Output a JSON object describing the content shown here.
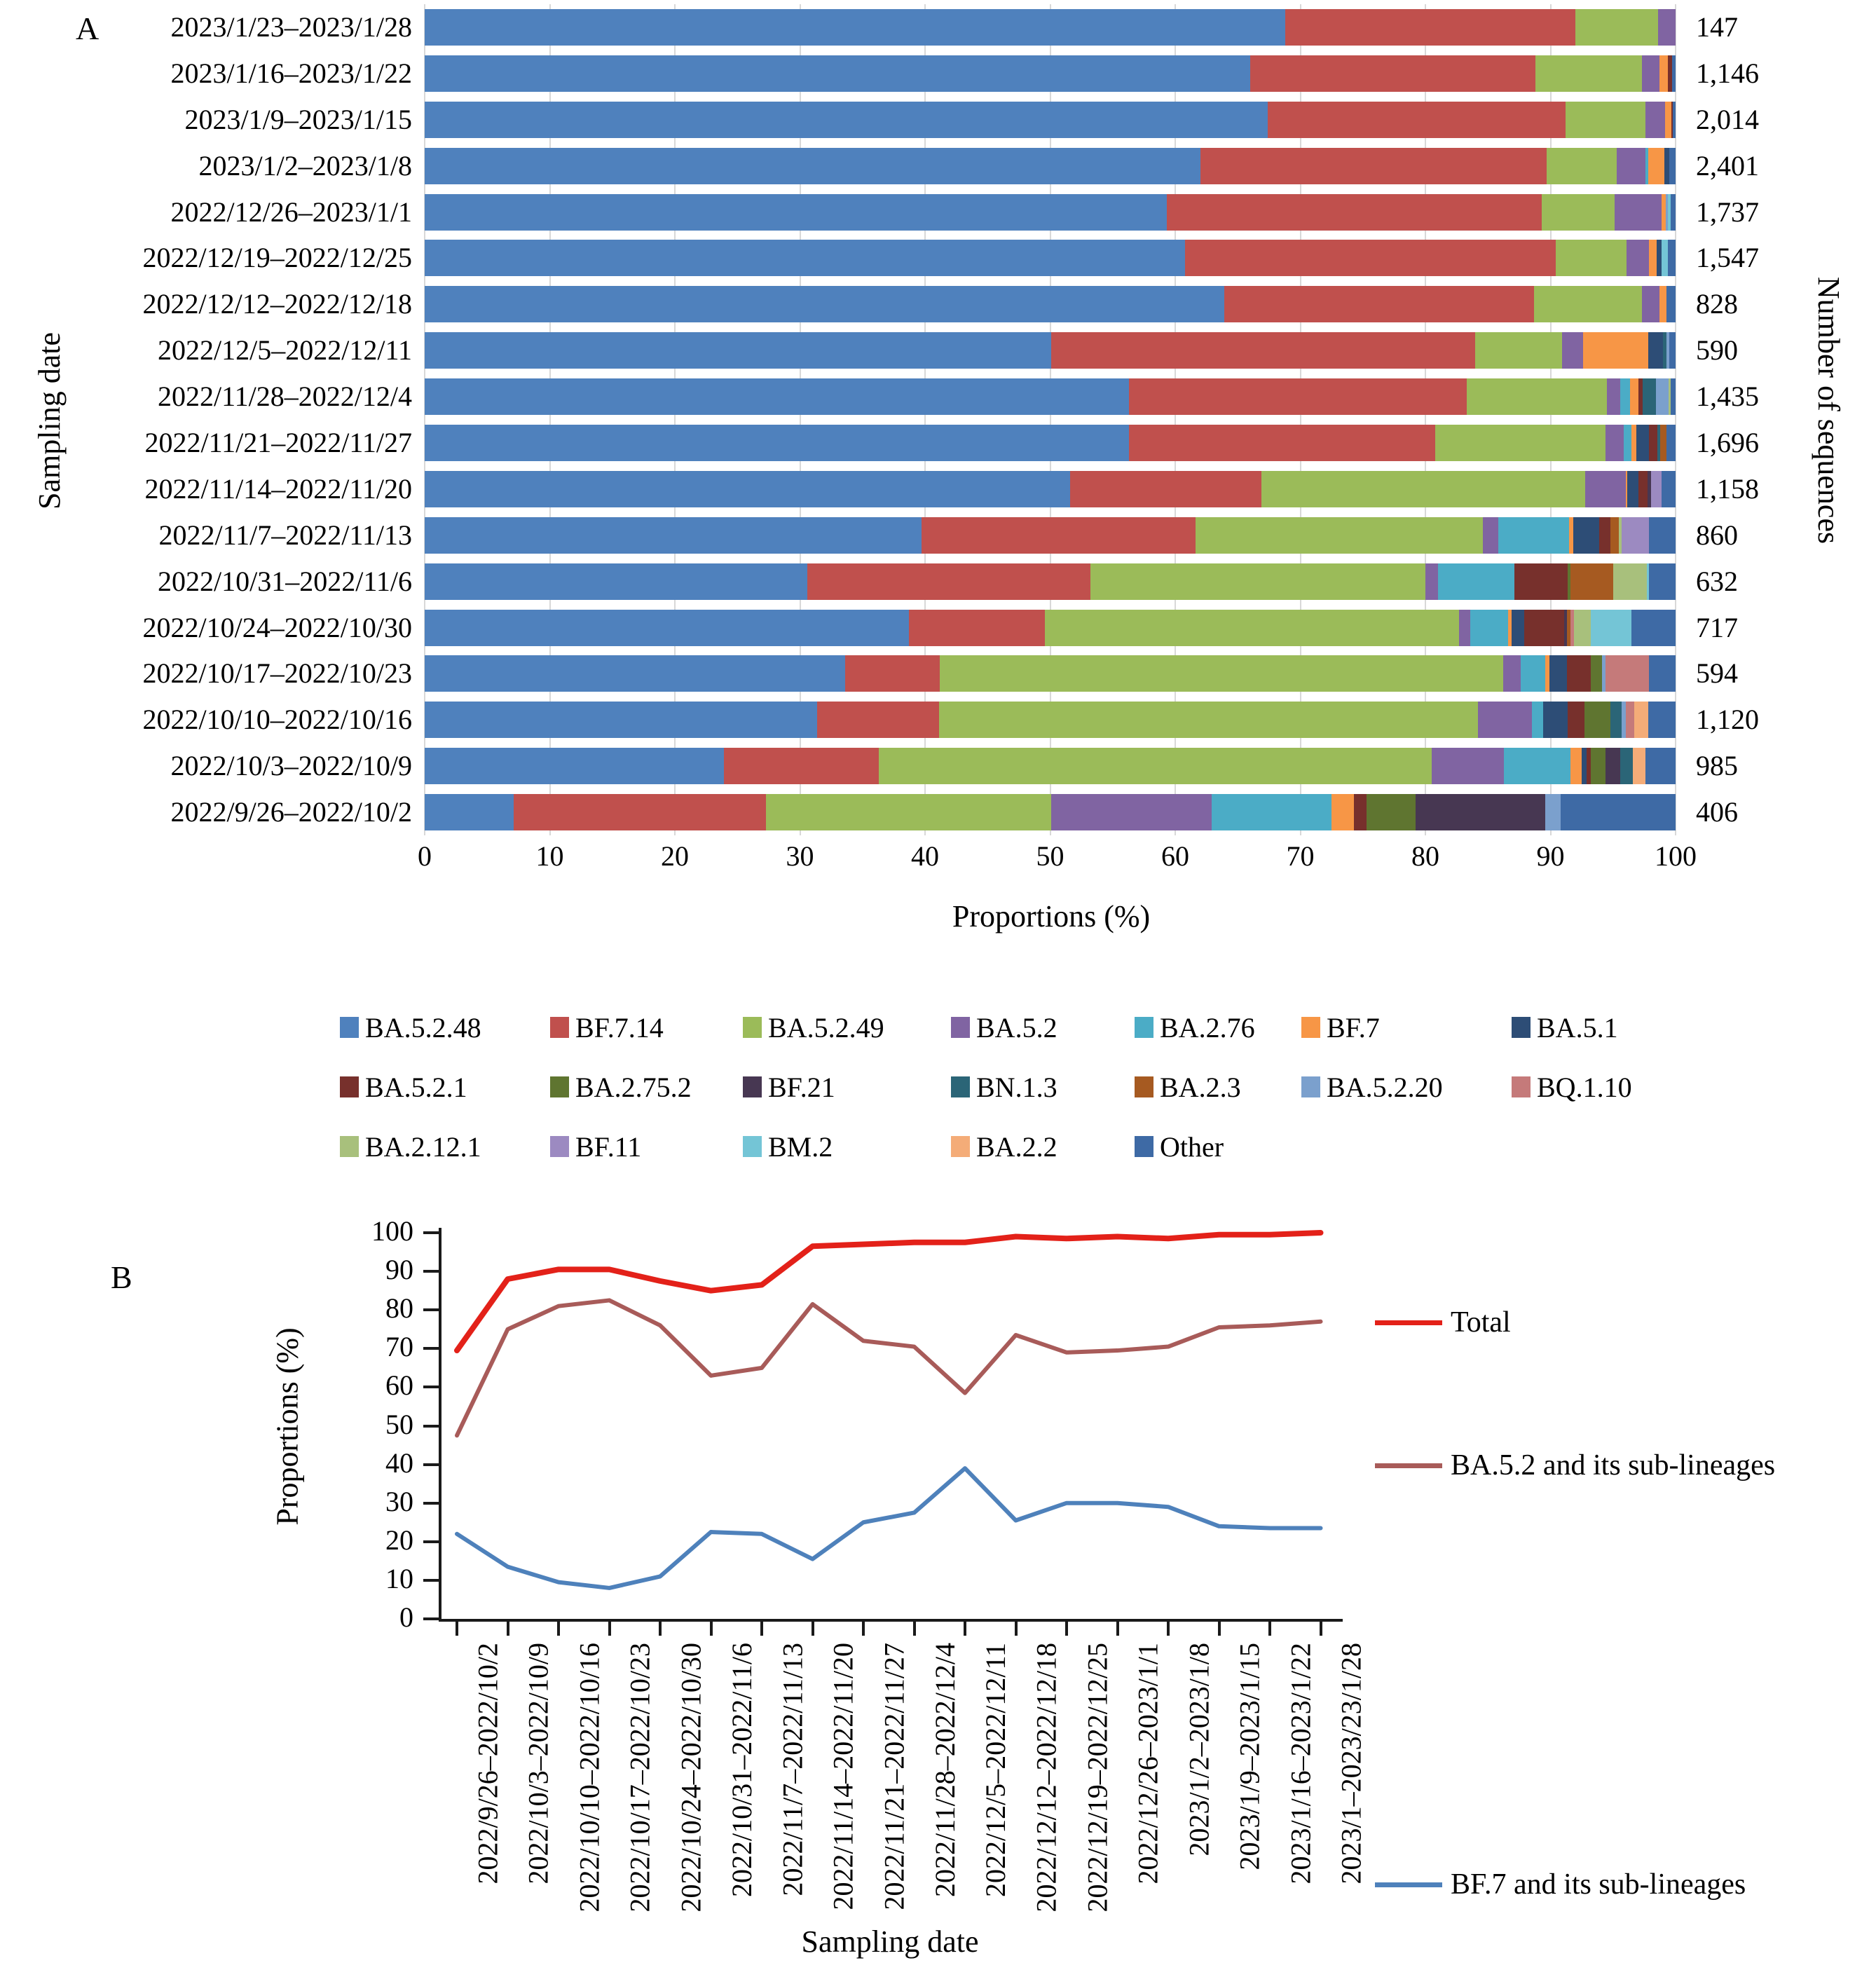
{
  "figure": {
    "panel_a_label": "A",
    "panel_b_label": "B"
  },
  "chart_data": [
    {
      "type": "bar",
      "orientation": "horizontal-stacked",
      "title": "",
      "xlabel": "Proportions (%)",
      "ylabel": "Sampling date",
      "right_axis_label": "Number of sequences",
      "xlim": [
        0,
        100
      ],
      "x_ticks": [
        0,
        10,
        20,
        30,
        40,
        50,
        60,
        70,
        80,
        90,
        100
      ],
      "grid": true,
      "legend_position": "bottom",
      "lineages": [
        {
          "name": "BA.5.2.48",
          "color": "#4F81BD"
        },
        {
          "name": "BF.7.14",
          "color": "#C0504D"
        },
        {
          "name": "BA.5.2.49",
          "color": "#9BBB59"
        },
        {
          "name": "BA.5.2",
          "color": "#8064A2"
        },
        {
          "name": "BA.2.76",
          "color": "#4BACC6"
        },
        {
          "name": "BF.7",
          "color": "#F79646"
        },
        {
          "name": "BA.5.1",
          "color": "#2D4D76"
        },
        {
          "name": "BA.5.2.1",
          "color": "#77302C"
        },
        {
          "name": "BA.2.75.2",
          "color": "#5F7530"
        },
        {
          "name": "BF.21",
          "color": "#473752"
        },
        {
          "name": "BN.1.3",
          "color": "#2B6577"
        },
        {
          "name": "BA.2.3",
          "color": "#A65A21"
        },
        {
          "name": "BA.5.2.20",
          "color": "#7BA0CD"
        },
        {
          "name": "BQ.1.10",
          "color": "#C57A7A"
        },
        {
          "name": "BA.2.12.1",
          "color": "#A8C07C"
        },
        {
          "name": "BF.11",
          "color": "#9C8AC1"
        },
        {
          "name": "BM.2",
          "color": "#74C5D6"
        },
        {
          "name": "BA.2.2",
          "color": "#F4AC78"
        },
        {
          "name": "Other",
          "color": "#3E6AA5"
        }
      ],
      "rows": [
        {
          "date": "2023/1/23–2023/1/28",
          "count": "147",
          "segments": [
            68.8,
            23.2,
            6.6,
            1.4,
            0,
            0,
            0,
            0,
            0,
            0,
            0,
            0,
            0,
            0,
            0,
            0,
            0,
            0,
            0
          ]
        },
        {
          "date": "2023/1/16–2023/1/22",
          "count": "1,146",
          "segments": [
            66.0,
            22.8,
            8.5,
            1.4,
            0,
            0.7,
            0,
            0.3,
            0,
            0,
            0,
            0,
            0,
            0,
            0,
            0,
            0,
            0,
            0.3
          ]
        },
        {
          "date": "2023/1/9–2023/1/15",
          "count": "2,014",
          "segments": [
            67.4,
            23.8,
            6.4,
            1.55,
            0,
            0.5,
            0,
            0.15,
            0,
            0,
            0,
            0,
            0,
            0,
            0,
            0,
            0,
            0,
            0.2
          ]
        },
        {
          "date": "2023/1/2–2023/1/8",
          "count": "2,401",
          "segments": [
            62.0,
            27.7,
            5.6,
            2.3,
            0.2,
            1.3,
            0.4,
            0,
            0,
            0,
            0,
            0,
            0,
            0,
            0,
            0,
            0,
            0,
            0.5
          ]
        },
        {
          "date": "2022/12/26–2023/1/1",
          "count": "1,737",
          "segments": [
            59.3,
            30.0,
            5.8,
            3.8,
            0,
            0.3,
            0,
            0,
            0,
            0,
            0,
            0,
            0.2,
            0,
            0,
            0,
            0.2,
            0,
            0.4
          ]
        },
        {
          "date": "2022/12/19–2022/12/25",
          "count": "1,547",
          "segments": [
            60.8,
            29.6,
            5.7,
            1.8,
            0,
            0.6,
            0.4,
            0,
            0,
            0,
            0,
            0,
            0,
            0,
            0,
            0,
            0.5,
            0,
            0.6
          ]
        },
        {
          "date": "2022/12/12–2022/12/18",
          "count": "828",
          "segments": [
            63.9,
            24.8,
            8.6,
            1.4,
            0,
            0.6,
            0,
            0,
            0,
            0,
            0,
            0,
            0,
            0,
            0,
            0,
            0,
            0,
            0.7
          ]
        },
        {
          "date": "2022/12/5–2022/12/11",
          "count": "590",
          "segments": [
            50.1,
            33.9,
            6.9,
            1.7,
            0,
            5.2,
            1.2,
            0,
            0,
            0,
            0.3,
            0,
            0.2,
            0,
            0,
            0,
            0,
            0,
            0.5
          ]
        },
        {
          "date": "2022/11/28–2022/12/4",
          "count": "1,435",
          "segments": [
            56.3,
            27.0,
            11.2,
            1.1,
            0.75,
            0.7,
            0,
            0.3,
            0,
            0,
            1.1,
            0,
            1.0,
            0,
            0.15,
            0,
            0,
            0,
            0.4
          ]
        },
        {
          "date": "2022/11/21–2022/11/27",
          "count": "1,696",
          "segments": [
            56.3,
            24.5,
            13.6,
            1.45,
            0.6,
            0.4,
            1.0,
            0.7,
            0,
            0,
            0.2,
            0.5,
            0,
            0,
            0,
            0,
            0,
            0,
            0.75
          ]
        },
        {
          "date": "2022/11/14–2022/11/20",
          "count": "1,158",
          "segments": [
            51.6,
            15.3,
            25.9,
            3.2,
            0,
            0.15,
            0.9,
            0.7,
            0,
            0.3,
            0,
            0,
            0,
            0,
            0,
            0.85,
            0,
            0,
            1.1
          ]
        },
        {
          "date": "2022/11/7–2022/11/13",
          "count": "860",
          "segments": [
            39.7,
            21.9,
            23.0,
            1.2,
            5.7,
            0.3,
            2.1,
            0.9,
            0,
            0,
            0,
            0.65,
            0,
            0,
            0.25,
            2.2,
            0,
            0,
            2.1
          ]
        },
        {
          "date": "2022/10/31–2022/11/6",
          "count": "632",
          "segments": [
            30.6,
            22.6,
            26.8,
            1.0,
            6.1,
            0,
            0,
            4.3,
            0.2,
            0,
            0,
            3.4,
            0,
            0,
            2.7,
            0,
            0.2,
            0,
            2.1
          ]
        },
        {
          "date": "2022/10/24–2022/10/30",
          "count": "717",
          "segments": [
            38.7,
            10.9,
            33.1,
            0.9,
            3.0,
            0.3,
            1.0,
            3.2,
            0,
            0.2,
            0,
            0.3,
            0,
            0.3,
            1.3,
            0,
            3.3,
            0,
            3.5
          ]
        },
        {
          "date": "2022/10/17–2022/10/23",
          "count": "594",
          "segments": [
            33.6,
            7.6,
            45.0,
            1.4,
            2.0,
            0.3,
            1.4,
            1.9,
            0.9,
            0,
            0,
            0,
            0.3,
            3.5,
            0,
            0,
            0,
            0,
            2.1
          ]
        },
        {
          "date": "2022/10/10–2022/10/16",
          "count": "1,120",
          "segments": [
            31.4,
            9.7,
            43.1,
            4.3,
            0.9,
            0,
            2.0,
            1.3,
            2.1,
            0,
            0.9,
            0,
            0.3,
            0.7,
            0,
            0,
            0,
            1.1,
            2.2
          ]
        },
        {
          "date": "2022/10/3–2022/10/9",
          "count": "985",
          "segments": [
            23.9,
            12.4,
            44.2,
            5.8,
            5.3,
            0.9,
            0.4,
            0.3,
            1.2,
            1.2,
            1.0,
            0,
            0,
            0,
            0,
            0,
            0,
            1.0,
            2.4
          ]
        },
        {
          "date": "2022/9/26–2022/10/2",
          "count": "406",
          "segments": [
            7.1,
            20.2,
            22.8,
            12.8,
            9.6,
            1.8,
            0,
            1.0,
            3.9,
            10.4,
            0,
            0,
            1.2,
            0,
            0,
            0,
            0,
            0,
            9.2
          ]
        }
      ]
    },
    {
      "type": "line",
      "title": "",
      "xlabel": "Sampling date",
      "ylabel": "Proportions (%)",
      "ylim": [
        0,
        100
      ],
      "y_ticks": [
        0,
        10,
        20,
        30,
        40,
        50,
        60,
        70,
        80,
        90,
        100
      ],
      "grid": false,
      "legend_position": "right",
      "categories": [
        "2022/9/26–2022/10/2",
        "2022/10/3–2022/10/9",
        "2022/10/10–2022/10/16",
        "2022/10/17–2022/10/23",
        "2022/10/24–2022/10/30",
        "2022/10/31–2022/11/6",
        "2022/11/7–2022/11/13",
        "2022/11/14–2022/11/20",
        "2022/11/21–2022/11/27",
        "2022/11/28–2022/12/4",
        "2022/12/5–2022/12/11",
        "2022/12/12–2022/12/18",
        "2022/12/19–2022/12/25",
        "2022/12/26–2023/1/1",
        "2023/1/2–2023/1/8",
        "2023/1/9–2023/1/15",
        "2023/1/16–2023/1/22",
        "2023/1–2023/23/1/28"
      ],
      "series": [
        {
          "name": "Total",
          "color": "#E32119",
          "width": 8,
          "values": [
            69.5,
            88,
            90.5,
            90.5,
            87.5,
            85,
            86.5,
            96.5,
            97,
            97.5,
            97.5,
            99,
            98.5,
            99,
            98.5,
            99.5,
            99.5,
            100
          ]
        },
        {
          "name": "BA.5.2 and its sub-lineages",
          "color": "#A85B59",
          "width": 6,
          "values": [
            47.5,
            75,
            81,
            82.5,
            76,
            63,
            65,
            81.5,
            72,
            70.5,
            58.5,
            73.5,
            69,
            69.5,
            70.5,
            75.5,
            76,
            77
          ]
        },
        {
          "name": "BF.7 and its sub-lineages",
          "color": "#4E81BB",
          "width": 6,
          "values": [
            22,
            13.5,
            9.5,
            8,
            11,
            22.5,
            22,
            15.5,
            25,
            27.5,
            39,
            25.5,
            30,
            30,
            29,
            24,
            23.5,
            23.5
          ]
        }
      ]
    }
  ]
}
